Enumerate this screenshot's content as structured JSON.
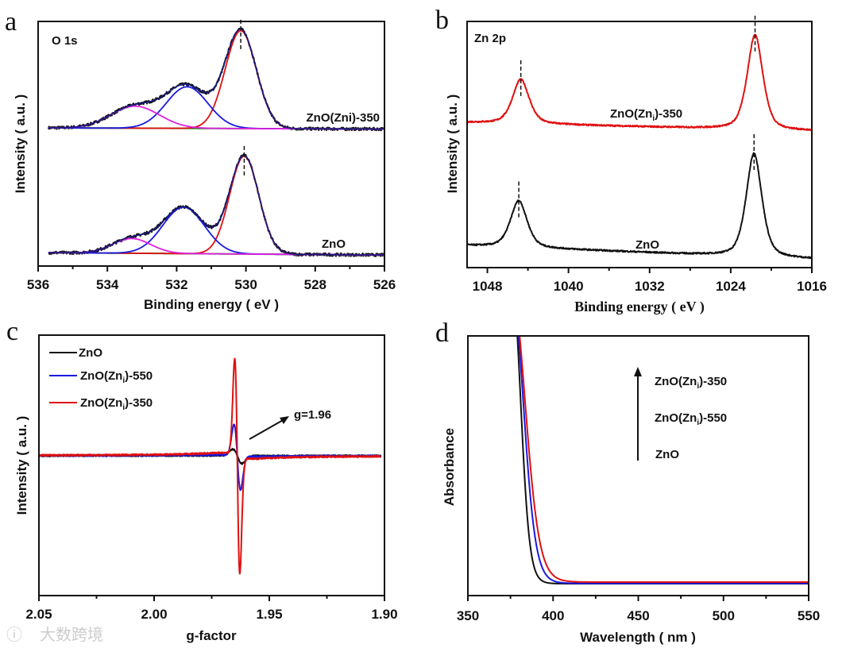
{
  "watermark": "大数跨境",
  "chart_data": [
    {
      "panel": "a",
      "type": "line",
      "title": "O 1s",
      "xlabel": "Binding energy ( eV )",
      "ylabel": "Intensity ( a.u. )",
      "xlim": [
        536,
        526
      ],
      "ylim": [
        0,
        1
      ],
      "xticks": [
        "536",
        "534",
        "532",
        "530",
        "528",
        "526"
      ],
      "xtick_values": [
        536,
        534,
        532,
        530,
        528,
        526
      ],
      "grid": false,
      "colors": {
        "raw": "#111111",
        "envelope": "#1a1a80",
        "baseline": "#1a8a1a",
        "components": [
          "#e01010",
          "#1a1ae0",
          "#e020e0"
        ]
      },
      "series": [
        {
          "name": "ZnO(Zni)-350",
          "baseline": [
            0.565,
            0.56
          ],
          "marker": 530.15,
          "components": [
            {
              "center": 530.15,
              "height": 0.4,
              "width": 0.45
            },
            {
              "center": 531.7,
              "height": 0.17,
              "width": 0.6
            },
            {
              "center": 533.2,
              "height": 0.09,
              "width": 0.7
            }
          ]
        },
        {
          "name": "ZnO",
          "baseline": [
            0.055,
            0.045
          ],
          "marker": 530.05,
          "components": [
            {
              "center": 530.05,
              "height": 0.4,
              "width": 0.42
            },
            {
              "center": 531.8,
              "height": 0.19,
              "width": 0.6
            },
            {
              "center": 533.3,
              "height": 0.06,
              "width": 0.55
            }
          ]
        }
      ]
    },
    {
      "panel": "b",
      "type": "line",
      "title": "Zn 2p",
      "xlabel": "Binding energy ( eV )",
      "ylabel": "Intensity ( a.u. )",
      "xlim": [
        1050,
        1016
      ],
      "ylim": [
        0,
        1
      ],
      "xticks": [
        "1048",
        "1040",
        "1032",
        "1024",
        "1016"
      ],
      "xtick_values": [
        1048,
        1040,
        1032,
        1024,
        1016
      ],
      "grid": false,
      "series": [
        {
          "name": "ZnO(Zni)-350",
          "label": {
            "pre": "ZnO(Zn",
            "sub": "i",
            "post": ")-350"
          },
          "color": "#e01010",
          "baseline": [
            0.59,
            0.555
          ],
          "peaks": [
            {
              "center": 1044.7,
              "height": 0.18,
              "width": 0.9
            },
            {
              "center": 1021.6,
              "height": 0.385,
              "width": 0.85
            }
          ],
          "markers": [
            1044.7,
            1021.6
          ]
        },
        {
          "name": "ZnO",
          "label": {
            "pre": "ZnO",
            "sub": "",
            "post": ""
          },
          "color": "#111111",
          "baseline": [
            0.09,
            0.035
          ],
          "peaks": [
            {
              "center": 1044.9,
              "height": 0.19,
              "width": 0.9
            },
            {
              "center": 1021.7,
              "height": 0.42,
              "width": 0.85
            }
          ],
          "markers": [
            1044.9,
            1021.7
          ]
        }
      ]
    },
    {
      "panel": "c",
      "type": "line",
      "xlabel": "g-factor",
      "ylabel": "Intensity ( a.u. )",
      "xlim": [
        2.05,
        1.9
      ],
      "ylim": [
        0,
        1
      ],
      "xticks": [
        "2.05",
        "2.00",
        "1.95",
        "1.90"
      ],
      "xtick_values": [
        2.05,
        2.0,
        1.95,
        1.9
      ],
      "grid": false,
      "legend_position": "top-left",
      "annotation": {
        "text": "g=1.96",
        "g": 1.96
      },
      "baseline": 0.537,
      "g0": 1.9639,
      "series": [
        {
          "name": "ZnO",
          "label": {
            "pre": "ZnO",
            "sub": "",
            "post": ""
          },
          "color": "#111111",
          "up": 0.025,
          "down": 0.03,
          "width": 0.002
        },
        {
          "name": "ZnO(Zni)-550",
          "label": {
            "pre": "ZnO(Zn",
            "sub": "i",
            "post": ")-550"
          },
          "color": "#1a1ae0",
          "up": 0.12,
          "down": 0.13,
          "width": 0.0014
        },
        {
          "name": "ZnO(Zni)-350",
          "label": {
            "pre": "ZnO(Zn",
            "sub": "i",
            "post": ")-350"
          },
          "color": "#e01010",
          "up": 0.37,
          "down": 0.45,
          "width": 0.0011
        }
      ]
    },
    {
      "panel": "d",
      "type": "line",
      "xlabel": "Wavelength ( nm )",
      "ylabel": "Absorbance",
      "xlim": [
        350,
        550
      ],
      "ylim": [
        0,
        1
      ],
      "xticks": [
        "350",
        "400",
        "450",
        "500",
        "550"
      ],
      "xtick_values": [
        350,
        400,
        450,
        500,
        550
      ],
      "grid": false,
      "legend_order_note": "",
      "series": [
        {
          "name": "ZnO(Zni)-350",
          "label": {
            "pre": "ZnO(Zn",
            "sub": "i",
            "post": ")-350"
          },
          "color": "#e01010",
          "edge": 383.5,
          "slope": 4.2,
          "base": 0.052
        },
        {
          "name": "ZnO(Zni)-550",
          "label": {
            "pre": "ZnO(Zn",
            "sub": "i",
            "post": ")-550"
          },
          "color": "#1a1ae0",
          "edge": 382.5,
          "slope": 3.6,
          "base": 0.047
        },
        {
          "name": "ZnO",
          "label": {
            "pre": "ZnO",
            "sub": "",
            "post": ""
          },
          "color": "#111111",
          "edge": 381,
          "slope": 2.6,
          "base": 0.046
        }
      ]
    }
  ]
}
